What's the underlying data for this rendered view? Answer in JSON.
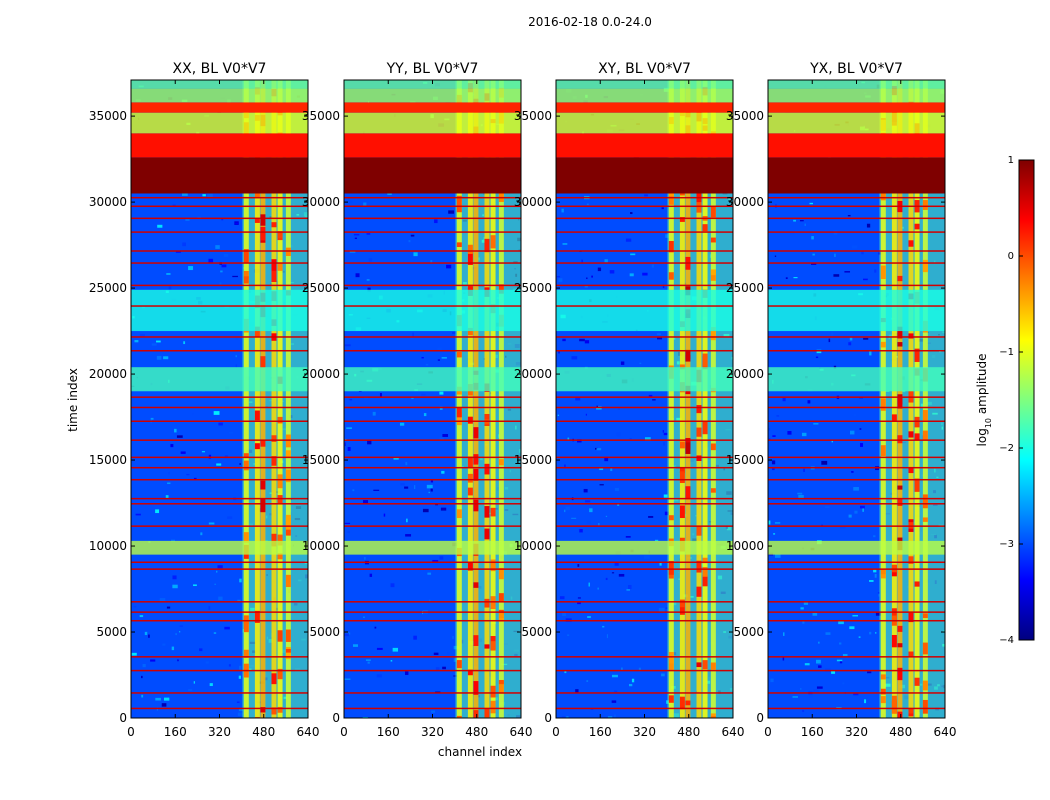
{
  "figure": {
    "title": "2016-02-18 0.0-24.0",
    "xlabel": "channel index",
    "ylabel": "time index"
  },
  "colorbar": {
    "label_prefix": "log",
    "label_sub": "10",
    "label_suffix": " amplitude",
    "range": [
      -4,
      1
    ],
    "ticks": [
      1,
      0,
      -1,
      -2,
      -3,
      -4
    ],
    "tick_labels": [
      "1",
      "0",
      "−1",
      "−2",
      "−3",
      "−4"
    ],
    "colormap": "jet",
    "colors": [
      "#00007f",
      "#0000ff",
      "#007fff",
      "#00ffff",
      "#7fff7f",
      "#ffff00",
      "#ff7f00",
      "#ff0000",
      "#7f0000"
    ]
  },
  "chart_data": {
    "type": "heatmap",
    "x_range": [
      0,
      640
    ],
    "y_range": [
      0,
      37100
    ],
    "x_ticks": [
      0,
      160,
      320,
      480,
      640
    ],
    "y_ticks": [
      0,
      5000,
      10000,
      15000,
      20000,
      25000,
      30000,
      35000
    ],
    "panels": [
      {
        "title": "XX, BL V0*V7",
        "bright_band": [
          403,
          640
        ]
      },
      {
        "title": "YY, BL V0*V7",
        "bright_band": [
          403,
          640
        ]
      },
      {
        "title": "XY, BL V0*V7",
        "bright_band": [
          403,
          640
        ]
      },
      {
        "title": "YX, BL V0*V7",
        "bright_band": [
          403,
          640
        ]
      }
    ],
    "bright_columns": [
      408,
      448,
      468,
      508,
      530,
      560
    ],
    "bright_column_values": [
      -1.0,
      -0.8,
      -0.5,
      -0.7,
      -0.9,
      -1.1
    ],
    "background_value": -3.0,
    "horizontal_bands": [
      {
        "from": 30500,
        "to": 32600,
        "value": 1.0
      },
      {
        "from": 32600,
        "to": 34000,
        "value": 0.3
      },
      {
        "from": 34000,
        "to": 35200,
        "value": -1.0
      },
      {
        "from": 35200,
        "to": 35800,
        "value": 0.2
      },
      {
        "from": 35800,
        "to": 36600,
        "value": -1.3
      },
      {
        "from": 36600,
        "to": 37100,
        "value": -1.6
      },
      {
        "from": 9500,
        "to": 10300,
        "value": -1.2
      },
      {
        "from": 19000,
        "to": 20400,
        "value": -1.8
      },
      {
        "from": 22500,
        "to": 24900,
        "value": -2.0
      }
    ],
    "flag_rows": [
      600,
      1500,
      2800,
      3600,
      5700,
      6200,
      6800,
      8700,
      9100,
      11200,
      12500,
      12800,
      13900,
      14600,
      15200,
      16200,
      17300,
      18100,
      18700,
      21400,
      22200,
      24000,
      25200,
      26500,
      27200,
      28300,
      29100,
      29800,
      30300
    ],
    "flag_value": 0.6
  }
}
